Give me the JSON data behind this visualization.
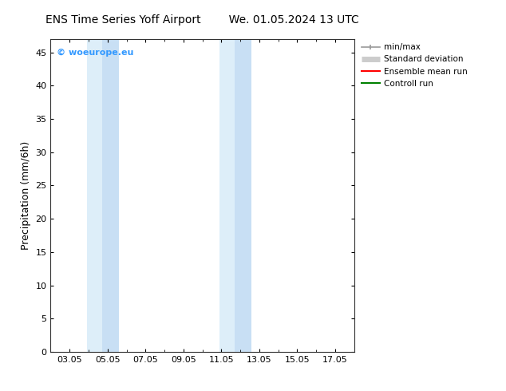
{
  "title_left": "ENS Time Series Yoff Airport",
  "title_right": "We. 01.05.2024 13 UTC",
  "ylabel": "Precipitation (mm/6h)",
  "ylim": [
    0,
    47
  ],
  "yticks": [
    0,
    5,
    10,
    15,
    20,
    25,
    30,
    35,
    40,
    45
  ],
  "xlim": [
    2.0,
    18.0
  ],
  "xtick_positions": [
    3,
    5,
    7,
    9,
    11,
    13,
    15,
    17
  ],
  "xtick_labels": [
    "03.05",
    "05.05",
    "07.05",
    "09.05",
    "11.05",
    "13.05",
    "15.05",
    "17.05"
  ],
  "shaded_bands": [
    {
      "x_start": 3.9,
      "x_end": 4.7,
      "color": "#ddeef9"
    },
    {
      "x_start": 4.7,
      "x_end": 5.6,
      "color": "#c8dff4"
    },
    {
      "x_start": 10.9,
      "x_end": 11.7,
      "color": "#ddeef9"
    },
    {
      "x_start": 11.7,
      "x_end": 12.6,
      "color": "#c8dff4"
    }
  ],
  "watermark_text": "© woeurope.eu",
  "watermark_color": "#3399ff",
  "legend_entries": [
    {
      "label": "min/max",
      "color": "#999999",
      "lw": 1.2
    },
    {
      "label": "Standard deviation",
      "color": "#cccccc",
      "lw": 5
    },
    {
      "label": "Ensemble mean run",
      "color": "#ff0000",
      "lw": 1.5
    },
    {
      "label": "Controll run",
      "color": "#008000",
      "lw": 1.5
    }
  ],
  "bg_color": "#ffffff",
  "plot_bg_color": "#ffffff",
  "title_fontsize": 10,
  "ylabel_fontsize": 9,
  "tick_fontsize": 8,
  "legend_fontsize": 7.5,
  "watermark_fontsize": 8
}
